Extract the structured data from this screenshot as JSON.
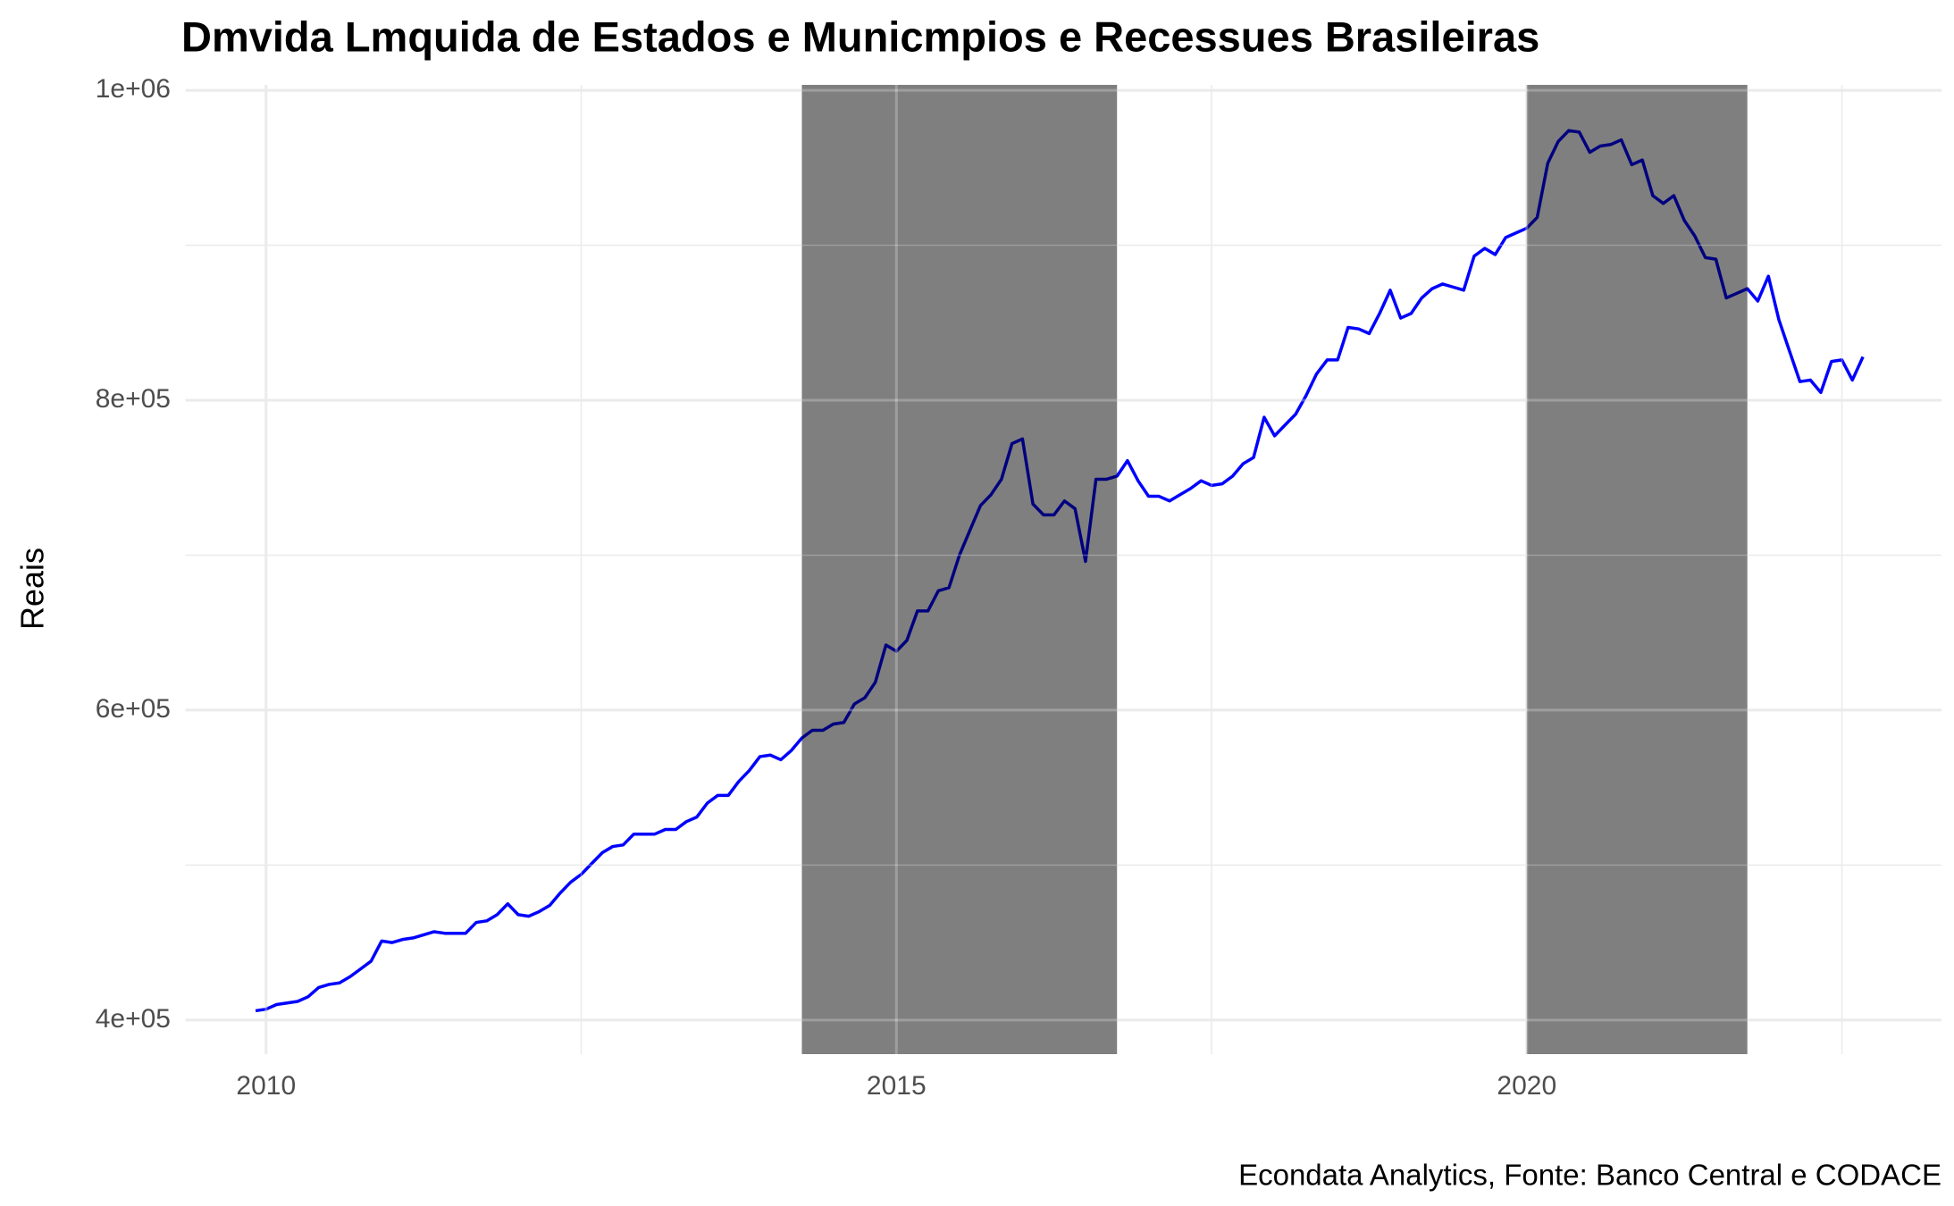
{
  "chart_data": {
    "type": "line",
    "title": "Dmvida Lmquida de Estados e Municmpios e Recessues Brasileiras",
    "y_label": "Reais",
    "caption": "Econdata Analytics, Fonte: Banco Central e CODACE",
    "x": [
      2009.917,
      2010.0,
      2010.083,
      2010.167,
      2010.25,
      2010.333,
      2010.417,
      2010.5,
      2010.583,
      2010.667,
      2010.75,
      2010.833,
      2010.917,
      2011.0,
      2011.083,
      2011.167,
      2011.25,
      2011.333,
      2011.417,
      2011.5,
      2011.583,
      2011.667,
      2011.75,
      2011.833,
      2011.917,
      2012.0,
      2012.083,
      2012.167,
      2012.25,
      2012.333,
      2012.417,
      2012.5,
      2012.583,
      2012.667,
      2012.75,
      2012.833,
      2012.917,
      2013.0,
      2013.083,
      2013.167,
      2013.25,
      2013.333,
      2013.417,
      2013.5,
      2013.583,
      2013.667,
      2013.75,
      2013.833,
      2013.917,
      2014.0,
      2014.083,
      2014.167,
      2014.25,
      2014.333,
      2014.417,
      2014.5,
      2014.583,
      2014.667,
      2014.75,
      2014.833,
      2014.917,
      2015.0,
      2015.083,
      2015.167,
      2015.25,
      2015.333,
      2015.417,
      2015.5,
      2015.583,
      2015.667,
      2015.75,
      2015.833,
      2015.917,
      2016.0,
      2016.083,
      2016.167,
      2016.25,
      2016.333,
      2016.417,
      2016.5,
      2016.583,
      2016.667,
      2016.75,
      2016.833,
      2016.917,
      2017.0,
      2017.083,
      2017.167,
      2017.25,
      2017.333,
      2017.417,
      2017.5,
      2017.583,
      2017.667,
      2017.75,
      2017.833,
      2017.917,
      2018.0,
      2018.083,
      2018.167,
      2018.25,
      2018.333,
      2018.417,
      2018.5,
      2018.583,
      2018.667,
      2018.75,
      2018.833,
      2018.917,
      2019.0,
      2019.083,
      2019.167,
      2019.25,
      2019.333,
      2019.417,
      2019.5,
      2019.583,
      2019.667,
      2019.75,
      2019.833,
      2019.917,
      2020.0,
      2020.083,
      2020.167,
      2020.25,
      2020.333,
      2020.417,
      2020.5,
      2020.583,
      2020.667,
      2020.75,
      2020.833,
      2020.917,
      2021.0,
      2021.083,
      2021.167,
      2021.25,
      2021.333,
      2021.417,
      2021.5,
      2021.583,
      2021.667,
      2021.75,
      2021.833,
      2021.917,
      2022.0,
      2022.083,
      2022.167,
      2022.25,
      2022.333,
      2022.417,
      2022.5,
      2022.583,
      2022.667
    ],
    "series": [
      {
        "color": "#0000ff",
        "values": [
          406000,
          407000,
          410000,
          411000,
          412000,
          415000,
          421000,
          423000,
          424000,
          428000,
          433000,
          438000,
          451000,
          450000,
          452000,
          453000,
          455000,
          457000,
          456000,
          456000,
          456000,
          463000,
          464000,
          468000,
          475000,
          468000,
          467000,
          470000,
          474000,
          482000,
          489000,
          494000,
          501000,
          508000,
          512000,
          513000,
          520000,
          520000,
          520000,
          523000,
          523000,
          528000,
          531000,
          540000,
          545000,
          545000,
          554000,
          561000,
          570000,
          571000,
          568000,
          574000,
          582000,
          587000,
          587000,
          591000,
          592000,
          604000,
          608000,
          618000,
          642000,
          638000,
          645000,
          664000,
          664000,
          677000,
          679000,
          700000,
          716000,
          732000,
          739000,
          749000,
          772000,
          775000,
          733000,
          726000,
          726000,
          735000,
          730000,
          696000,
          749000,
          749000,
          751000,
          761000,
          748000,
          738000,
          738000,
          735000,
          739000,
          743000,
          748000,
          745000,
          746000,
          751000,
          759000,
          763000,
          789000,
          777000,
          784000,
          791000,
          803000,
          817000,
          826000,
          826000,
          847000,
          846000,
          843000,
          856000,
          871000,
          853000,
          856000,
          866000,
          872000,
          875000,
          873000,
          871000,
          893000,
          898000,
          894000,
          905000,
          908000,
          911000,
          918000,
          953000,
          967000,
          974000,
          973000,
          960000,
          964000,
          965000,
          968000,
          952000,
          955000,
          932000,
          927000,
          932000,
          916000,
          906000,
          892000,
          891000,
          866000,
          869000,
          872000,
          864000,
          880000,
          852000,
          832000,
          812000,
          813000,
          805000,
          825000,
          826000,
          813000,
          828000
        ]
      }
    ],
    "recessions": [
      {
        "start": 2014.25,
        "end": 2016.75
      },
      {
        "start": 2020.0,
        "end": 2021.75
      }
    ],
    "recession_color": "#000000",
    "xlim": [
      2009.36,
      2023.29
    ],
    "xticks": [
      2010,
      2015,
      2020
    ],
    "x_minor_ticks": [
      2012.5,
      2017.5,
      2022.5
    ],
    "ylim": [
      378000,
      1003500
    ],
    "yticks": [
      {
        "value": 400000,
        "label": "4e+05"
      },
      {
        "value": 600000,
        "label": "6e+05"
      },
      {
        "value": 800000,
        "label": "8e+05"
      },
      {
        "value": 1000000,
        "label": "1e+06"
      }
    ],
    "y_minor_ticks": [
      500000,
      700000,
      900000
    ],
    "grid": true
  }
}
